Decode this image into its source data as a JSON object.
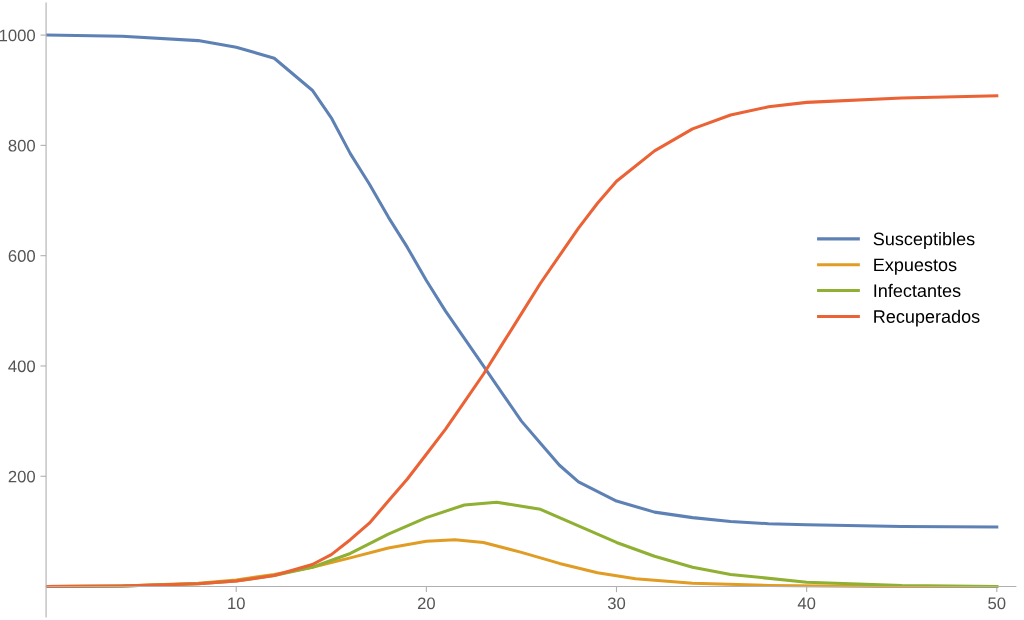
{
  "chart_data": {
    "type": "line",
    "xlim": [
      0,
      51
    ],
    "ylim": [
      -55,
      1058
    ],
    "xticks": [
      10,
      20,
      30,
      40,
      50
    ],
    "yticks": [
      200,
      400,
      600,
      800,
      1000
    ],
    "grid": false,
    "legend": "right",
    "marker": "none",
    "line_style": "solid",
    "series": [
      {
        "name": "Susceptibles",
        "color": "#5e81b5",
        "x": [
          0,
          4,
          8,
          10,
          12,
          14,
          15,
          16,
          17,
          18,
          19,
          20,
          21,
          22,
          23,
          24,
          25,
          26,
          27,
          28,
          30,
          32,
          34,
          36,
          38,
          40,
          45,
          50
        ],
        "values": [
          1000,
          998,
          990,
          978,
          958,
          900,
          850,
          785,
          730,
          670,
          615,
          555,
          500,
          450,
          400,
          350,
          300,
          260,
          220,
          190,
          155,
          135,
          125,
          118,
          114,
          112,
          109,
          108
        ]
      },
      {
        "name": "Expuestos",
        "color": "#e19c24",
        "x": [
          0,
          4,
          8,
          10,
          12,
          14,
          16,
          18,
          20,
          21.5,
          23,
          25,
          27,
          29,
          31,
          34,
          38,
          44,
          50
        ],
        "values": [
          0,
          1,
          6,
          12,
          22,
          35,
          52,
          70,
          82,
          85,
          80,
          62,
          42,
          25,
          14,
          6,
          2,
          0,
          0
        ]
      },
      {
        "name": "Infectantes",
        "color": "#8fb032",
        "x": [
          0,
          4,
          8,
          10,
          12,
          14,
          16,
          18,
          20,
          22,
          23.7,
          26,
          28,
          30,
          32,
          34,
          36,
          40,
          45,
          50
        ],
        "values": [
          0,
          1,
          5,
          10,
          20,
          35,
          60,
          95,
          125,
          148,
          153,
          140,
          110,
          80,
          55,
          35,
          22,
          8,
          2,
          0
        ]
      },
      {
        "name": "Recuperados",
        "color": "#eb6235",
        "x": [
          0,
          4,
          8,
          10,
          12,
          14,
          15,
          16,
          17,
          18,
          19,
          20,
          21,
          22,
          23,
          24,
          25,
          26,
          27,
          28,
          29,
          30,
          32,
          34,
          36,
          38,
          40,
          45,
          50
        ],
        "values": [
          0,
          1,
          5,
          10,
          20,
          40,
          58,
          85,
          115,
          155,
          195,
          240,
          285,
          335,
          385,
          440,
          495,
          550,
          600,
          650,
          695,
          735,
          790,
          830,
          855,
          870,
          878,
          886,
          890
        ]
      }
    ]
  }
}
